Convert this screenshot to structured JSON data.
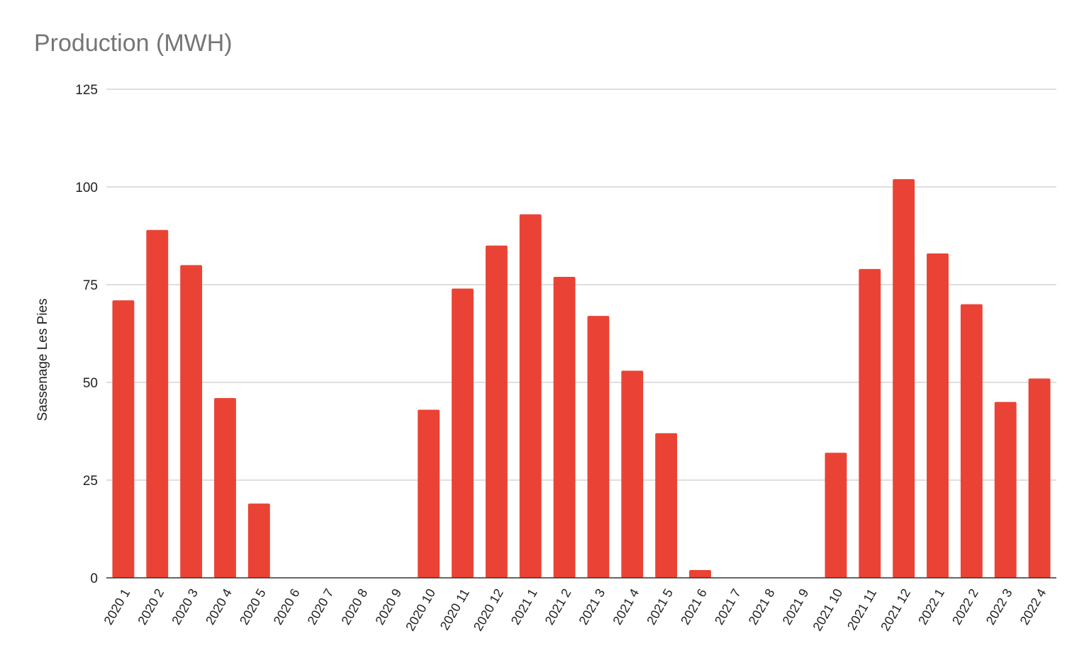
{
  "chart_data": {
    "type": "bar",
    "title": "Production (MWH)",
    "xlabel": "",
    "ylabel": "Sassenage Les Pies",
    "ylim": [
      0,
      125
    ],
    "yticks": [
      0,
      25,
      50,
      75,
      100,
      125
    ],
    "grid": true,
    "legend": "none",
    "bar_color": "#ea4335",
    "categories": [
      "2020 1",
      "2020 2",
      "2020 3",
      "2020 4",
      "2020 5",
      "2020 6",
      "2020 7",
      "2020 8",
      "2020 9",
      "2020 10",
      "2020 11",
      "2020 12",
      "2021 1",
      "2021 2",
      "2021 3",
      "2021 4",
      "2021 5",
      "2021 6",
      "2021 7",
      "2021 8",
      "2021 9",
      "2021 10",
      "2021 11",
      "2021 12",
      "2022 1",
      "2022 2",
      "2022 3",
      "2022 4"
    ],
    "values": [
      71,
      89,
      80,
      46,
      19,
      0,
      0,
      0,
      0,
      43,
      74,
      85,
      93,
      77,
      67,
      53,
      37,
      2,
      0,
      0,
      0,
      32,
      79,
      102,
      83,
      70,
      45,
      51
    ]
  }
}
